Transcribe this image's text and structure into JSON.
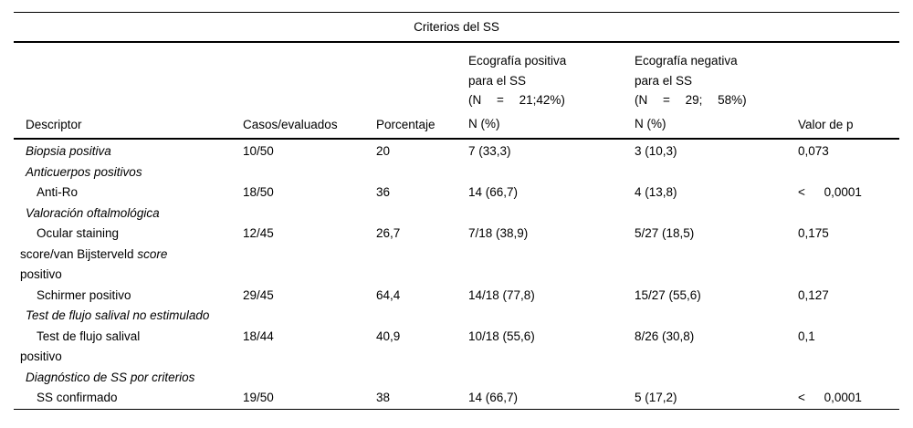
{
  "table": {
    "title": "Criterios del SS",
    "columns": {
      "descriptor": "Descriptor",
      "casos": "Casos/evaluados",
      "porcentaje": "Porcentaje",
      "valor_p": "Valor de p"
    },
    "groups": [
      {
        "lines": [
          "Ecografía positiva",
          "para el SS",
          "(N = 21;42%)"
        ],
        "sub": "N (%)"
      },
      {
        "lines": [
          "Ecografía negativa",
          "para el SS",
          "(N = 29; 58%)"
        ],
        "sub": "N (%)"
      }
    ],
    "rows": [
      {
        "type": "item-italic",
        "descriptor_lines": [
          "Biopsia positiva"
        ],
        "casos": "10/50",
        "porcentaje": "20",
        "eco_pos": "7 (33,3)",
        "eco_neg": "3 (10,3)",
        "valor_p": "0,073"
      },
      {
        "type": "section",
        "descriptor_lines": [
          "Anticuerpos positivos"
        ],
        "casos": "",
        "porcentaje": "",
        "eco_pos": "",
        "eco_neg": "",
        "valor_p": ""
      },
      {
        "type": "sub",
        "descriptor_lines": [
          "Anti-Ro"
        ],
        "casos": "18/50",
        "porcentaje": "36",
        "eco_pos": "14 (66,7)",
        "eco_neg": "4 (13,8)",
        "valor_p": "< 0,0001"
      },
      {
        "type": "section",
        "descriptor_lines": [
          "Valoración oftalmológica"
        ],
        "casos": "",
        "porcentaje": "",
        "eco_pos": "",
        "eco_neg": "",
        "valor_p": ""
      },
      {
        "type": "sub",
        "descriptor_lines": [
          "Ocular staining",
          "score/van Bijsterveld *score*",
          "positivo"
        ],
        "casos": "12/45",
        "porcentaje": "26,7",
        "eco_pos": "7/18 (38,9)",
        "eco_neg": "5/27 (18,5)",
        "valor_p": "0,175"
      },
      {
        "type": "sub",
        "descriptor_lines": [
          "Schirmer positivo"
        ],
        "casos": "29/45",
        "porcentaje": "64,4",
        "eco_pos": "14/18 (77,8)",
        "eco_neg": "15/27 (55,6)",
        "valor_p": "0,127"
      },
      {
        "type": "section",
        "descriptor_lines": [
          "Test de flujo salival no estimulado"
        ],
        "casos": "",
        "porcentaje": "",
        "eco_pos": "",
        "eco_neg": "",
        "valor_p": ""
      },
      {
        "type": "sub",
        "descriptor_lines": [
          "Test de flujo salival",
          "positivo"
        ],
        "casos": "18/44",
        "porcentaje": "40,9",
        "eco_pos": "10/18 (55,6)",
        "eco_neg": "8/26 (30,8)",
        "valor_p": "0,1"
      },
      {
        "type": "section",
        "descriptor_lines": [
          "Diagnóstico de SS por criterios"
        ],
        "casos": "",
        "porcentaje": "",
        "eco_pos": "",
        "eco_neg": "",
        "valor_p": ""
      },
      {
        "type": "sub",
        "descriptor_lines": [
          "SS confirmado"
        ],
        "casos": "19/50",
        "porcentaje": "38",
        "eco_pos": "14 (66,7)",
        "eco_neg": "5 (17,2)",
        "valor_p": "< 0,0001"
      }
    ]
  },
  "colors": {
    "text": "#000000",
    "rule": "#000000",
    "background": "#ffffff"
  }
}
